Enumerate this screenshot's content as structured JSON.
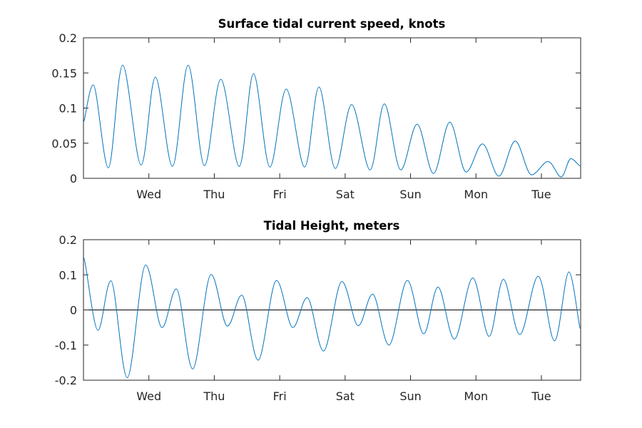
{
  "chart_data": [
    {
      "type": "line",
      "title": "Surface tidal current speed, knots",
      "xlabel": "",
      "ylabel": "",
      "xlim": [
        0,
        7.6
      ],
      "ylim": [
        0,
        0.2
      ],
      "yticks": [
        0,
        0.05,
        0.1,
        0.15,
        0.2
      ],
      "ytick_labels": [
        "0",
        "0.05",
        "0.1",
        "0.15",
        "0.2"
      ],
      "xticks": [
        {
          "value": 1,
          "label": "Wed"
        },
        {
          "value": 2,
          "label": "Thu"
        },
        {
          "value": 3,
          "label": "Fri"
        },
        {
          "value": 4,
          "label": "Sat"
        },
        {
          "value": 5,
          "label": "Sun"
        },
        {
          "value": 6,
          "label": "Mon"
        },
        {
          "value": 7,
          "label": "Tue"
        }
      ],
      "grid": false,
      "color": "#0072BD",
      "series": [
        {
          "x": [
            0.0,
            0.15,
            0.38,
            0.6,
            0.88,
            1.1,
            1.36,
            1.6,
            1.85,
            2.1,
            2.38,
            2.6,
            2.85,
            3.1,
            3.38,
            3.6,
            3.85,
            4.1,
            4.38,
            4.6,
            4.85,
            5.1,
            5.35,
            5.6,
            5.85,
            6.1,
            6.35,
            6.6,
            6.85,
            7.1,
            7.3,
            7.45,
            7.6
          ],
          "y": [
            0.08,
            0.133,
            0.015,
            0.161,
            0.019,
            0.144,
            0.017,
            0.161,
            0.018,
            0.141,
            0.017,
            0.149,
            0.016,
            0.127,
            0.016,
            0.13,
            0.014,
            0.105,
            0.012,
            0.106,
            0.012,
            0.077,
            0.007,
            0.08,
            0.009,
            0.049,
            0.003,
            0.053,
            0.005,
            0.024,
            0.002,
            0.028,
            0.017
          ]
        }
      ]
    },
    {
      "type": "line",
      "title": "Tidal Height, meters",
      "xlabel": "",
      "ylabel": "",
      "xlim": [
        0,
        7.6
      ],
      "ylim": [
        -0.2,
        0.2
      ],
      "yticks": [
        -0.2,
        -0.1,
        0,
        0.1,
        0.2
      ],
      "ytick_labels": [
        "-0.2",
        "-0.1",
        "0",
        "0.1",
        "0.2"
      ],
      "xticks": [
        {
          "value": 1,
          "label": "Wed"
        },
        {
          "value": 2,
          "label": "Thu"
        },
        {
          "value": 3,
          "label": "Fri"
        },
        {
          "value": 4,
          "label": "Sat"
        },
        {
          "value": 5,
          "label": "Sun"
        },
        {
          "value": 6,
          "label": "Mon"
        },
        {
          "value": 7,
          "label": "Tue"
        }
      ],
      "zero_line": true,
      "grid": false,
      "color": "#0072BD",
      "series": [
        {
          "x": [
            0.0,
            0.22,
            0.42,
            0.67,
            0.95,
            1.2,
            1.42,
            1.67,
            1.95,
            2.2,
            2.42,
            2.67,
            2.95,
            3.2,
            3.42,
            3.67,
            3.95,
            4.2,
            4.42,
            4.67,
            4.95,
            5.2,
            5.42,
            5.67,
            5.95,
            6.2,
            6.42,
            6.67,
            6.95,
            7.2,
            7.42,
            7.6
          ],
          "y": [
            0.15,
            -0.058,
            0.083,
            -0.193,
            0.128,
            -0.05,
            0.06,
            -0.168,
            0.101,
            -0.046,
            0.042,
            -0.143,
            0.084,
            -0.05,
            0.035,
            -0.117,
            0.081,
            -0.045,
            0.045,
            -0.1,
            0.084,
            -0.068,
            0.065,
            -0.083,
            0.091,
            -0.075,
            0.087,
            -0.07,
            0.096,
            -0.088,
            0.108,
            -0.055
          ]
        }
      ]
    }
  ]
}
